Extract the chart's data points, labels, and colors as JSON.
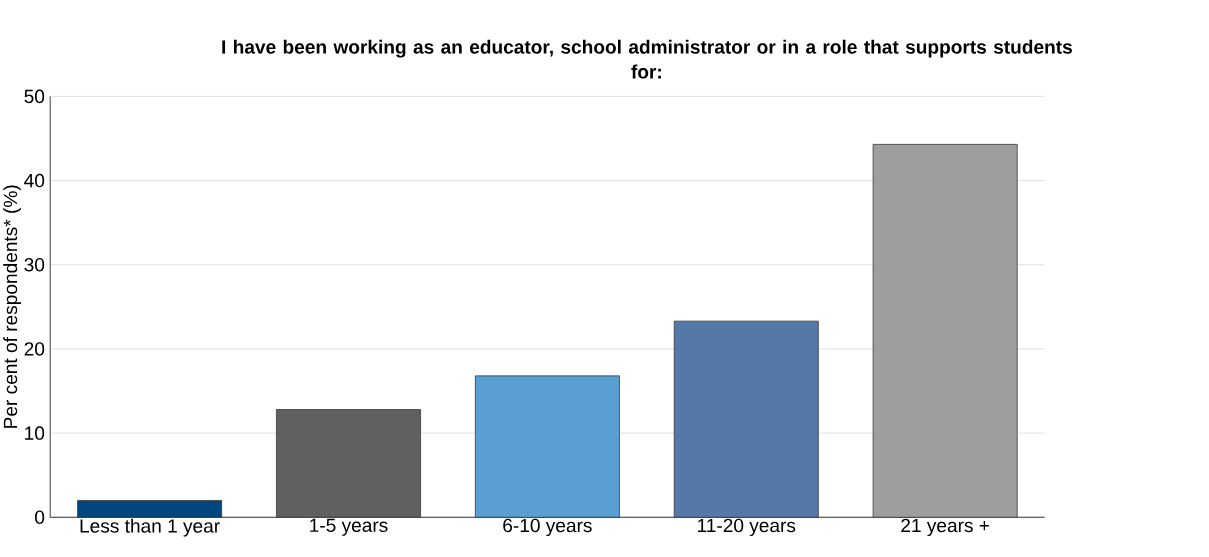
{
  "chart_data": {
    "type": "bar",
    "title": "I have been working as an educator, school administrator or in a role that supports students for:",
    "ylabel": "Per cent of respondents* (%)",
    "categories": [
      "Less than 1 year",
      "1-5 years",
      "6-10 years",
      "11-20 years",
      "21 years +"
    ],
    "values": [
      2.0,
      12.8,
      16.8,
      23.3,
      44.3
    ],
    "colors": [
      "#00477e",
      "#5f6062",
      "#5a9fd4",
      "#5478a8",
      "#9d9ea0"
    ],
    "ylim": [
      0,
      50
    ],
    "yticks": [
      0,
      10,
      20,
      30,
      40,
      50
    ],
    "grid": "y"
  }
}
